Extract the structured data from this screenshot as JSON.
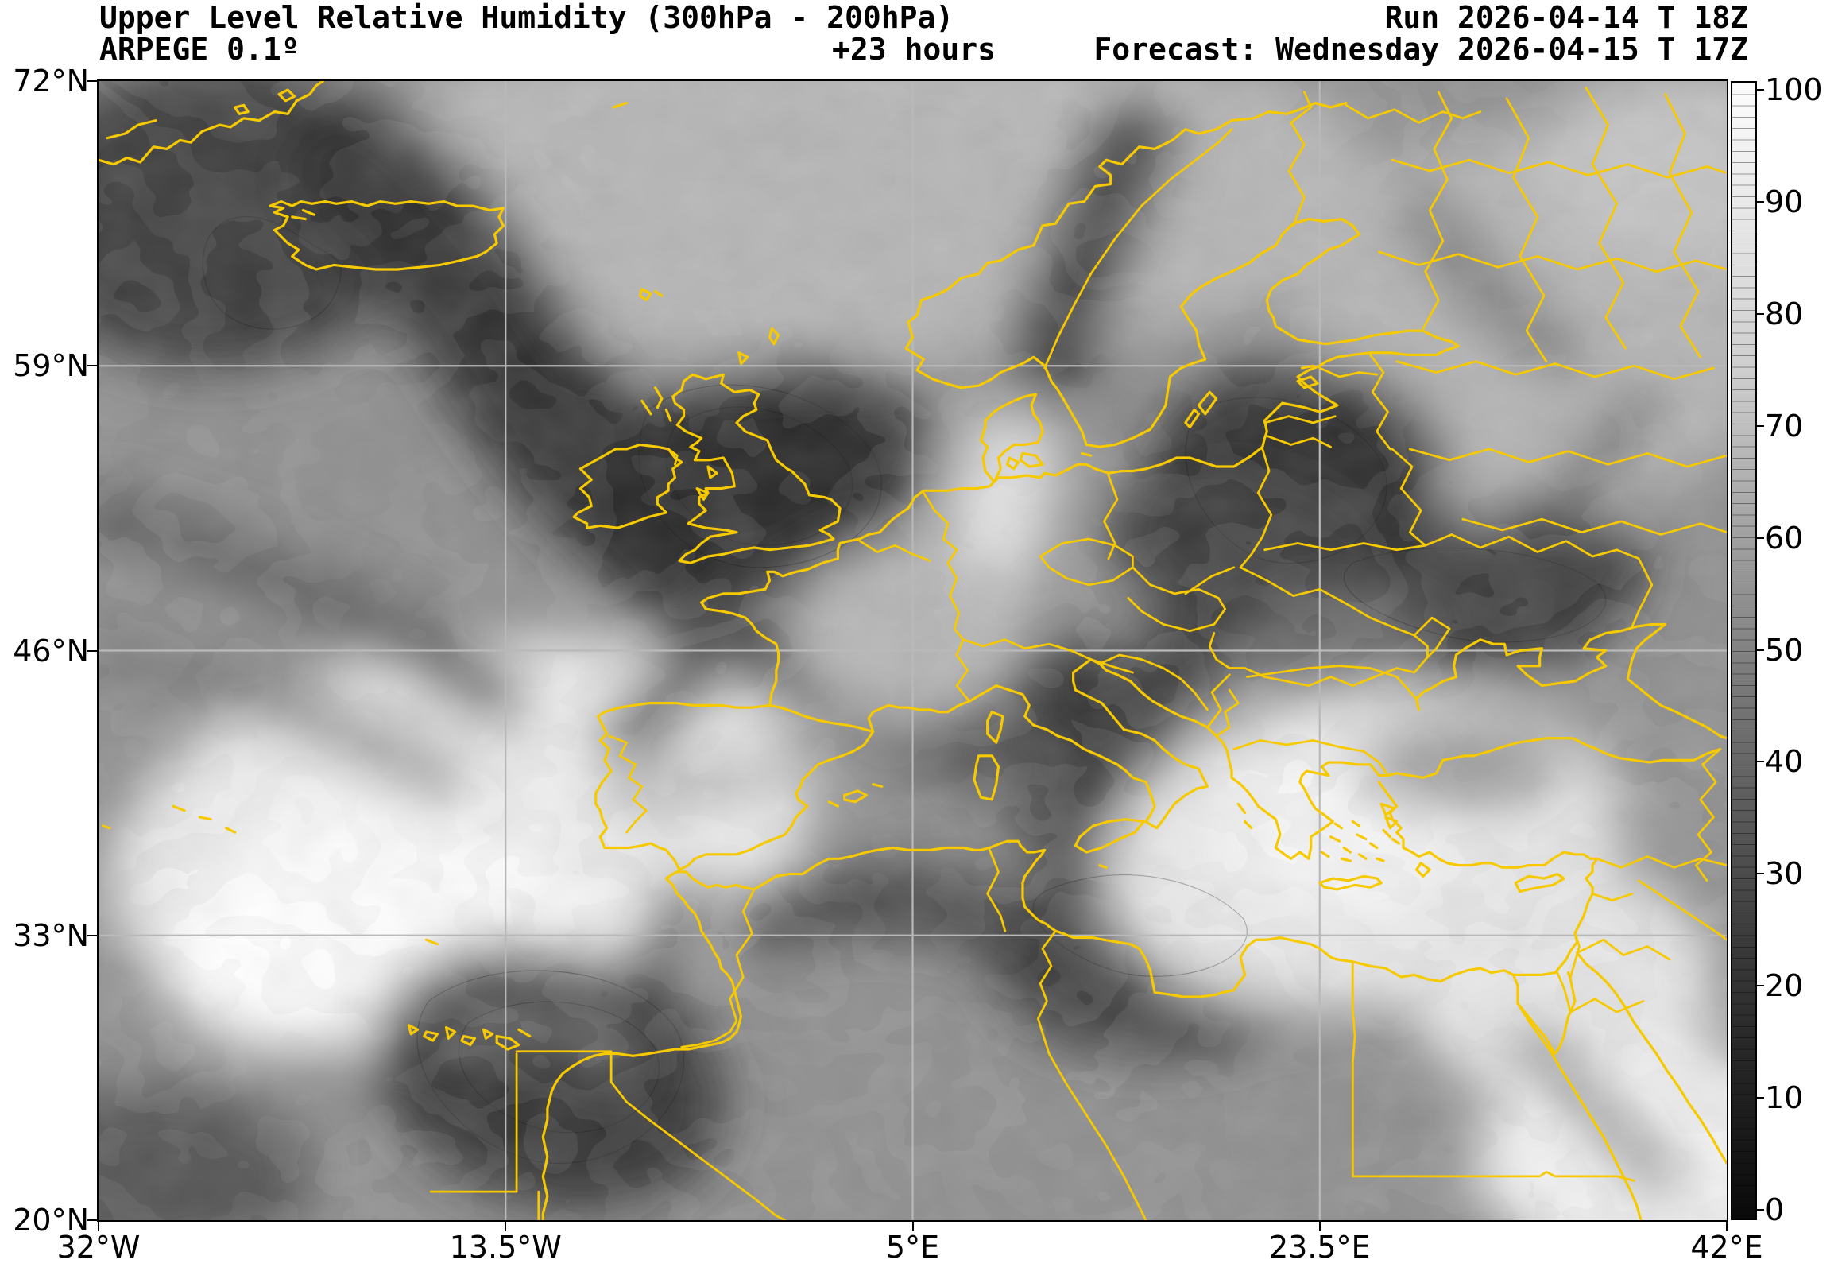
{
  "header": {
    "title": "Upper Level Relative Humidity (300hPa - 200hPa)",
    "model": "ARPEGE 0.1º",
    "lead_time": "+23 hours",
    "run": "Run 2026-04-14 T 18Z",
    "forecast": "Forecast: Wednesday 2026-04-15 T 17Z"
  },
  "map": {
    "extent": {
      "lon_min": -32,
      "lon_max": 42,
      "lat_min": 20,
      "lat_max": 72
    },
    "lat_ticks": [
      {
        "label": "72°N",
        "lat": 72
      },
      {
        "label": "59°N",
        "lat": 59
      },
      {
        "label": "46°N",
        "lat": 46
      },
      {
        "label": "33°N",
        "lat": 33
      },
      {
        "label": "20°N",
        "lat": 20
      }
    ],
    "lon_ticks": [
      {
        "label": "32°W",
        "lon": -32
      },
      {
        "label": "13.5°W",
        "lon": -13.5
      },
      {
        "label": "5°E",
        "lon": 5
      },
      {
        "label": "23.5°E",
        "lon": 23.5
      },
      {
        "label": "42°E",
        "lon": 42
      }
    ],
    "gridline_lats": [
      59,
      46,
      33
    ],
    "gridline_lons": [
      -13.5,
      5,
      23.5
    ],
    "colors": {
      "country_border": "#f6c900",
      "gridline": "#b9b9b9",
      "frame": "#000000"
    }
  },
  "colorbar": {
    "min": 0,
    "max": 100,
    "ticks": [
      {
        "label": "100",
        "value": 100
      },
      {
        "label": "90",
        "value": 90
      },
      {
        "label": "80",
        "value": 80
      },
      {
        "label": "70",
        "value": 70
      },
      {
        "label": "60",
        "value": 60
      },
      {
        "label": "50",
        "value": 50
      },
      {
        "label": "40",
        "value": 40
      },
      {
        "label": "30",
        "value": 30
      },
      {
        "label": "20",
        "value": 20
      },
      {
        "label": "10",
        "value": 10
      },
      {
        "label": "0",
        "value": 0
      }
    ]
  },
  "chart_data": {
    "type": "heatmap",
    "quantity": "Upper Level Relative Humidity (300hPa - 200hPa)",
    "value_range": [
      0,
      100
    ],
    "lon_range": [
      -32,
      42
    ],
    "lat_range": [
      20,
      72
    ],
    "colormap": "grayscale (0 = black, 100 = white)",
    "model": "ARPEGE 0.1º",
    "run": "2026-04-14 18Z",
    "valid": "Wednesday 2026-04-15 17Z (+23 hours)",
    "gridline_lats": [
      59,
      46,
      33
    ],
    "gridline_lons": [
      -13.5,
      5,
      23.5
    ]
  }
}
